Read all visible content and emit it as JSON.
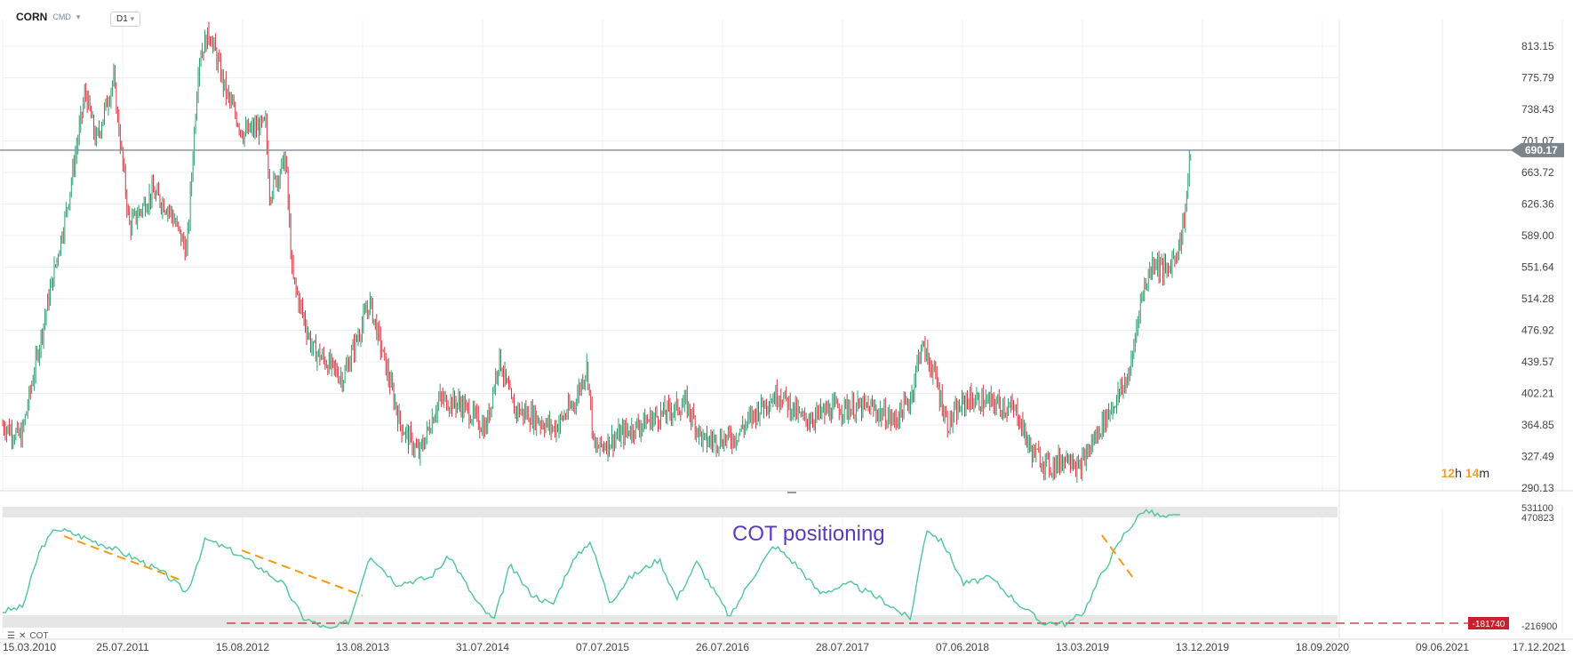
{
  "header": {
    "symbol": "CORN",
    "category": "CMD",
    "timeframe": "D1"
  },
  "timer": {
    "hours": "12",
    "h": "h",
    "minutes": "14",
    "m": "m"
  },
  "indicator": {
    "label": "COT"
  },
  "colors": {
    "up": "#2e9e6e",
    "down": "#d8343f",
    "cot_line": "#4fc79a",
    "trend": "#f39c12",
    "level": "#cc1e2c",
    "price_line": "#8a949b",
    "price_tag": "#7b858b",
    "annotation": "#5b3bbd"
  },
  "chart_data": [
    {
      "type": "candlestick",
      "symbol": "CORN",
      "timeframe": "D1",
      "x_tick_labels": [
        "15.03.2010",
        "25.07.2011",
        "15.08.2012",
        "13.08.2013",
        "31.07.2014",
        "07.07.2015",
        "26.07.2016",
        "28.07.2017",
        "07.06.2018",
        "13.03.2019",
        "13.12.2019",
        "18.09.2020",
        "09.06.2021",
        "17.12.2021"
      ],
      "y_tick_labels": [
        "813.15",
        "775.79",
        "738.43",
        "701.07",
        "663.72",
        "626.36",
        "589.00",
        "551.64",
        "514.28",
        "476.92",
        "439.57",
        "402.21",
        "364.85",
        "327.49",
        "290.13"
      ],
      "ylim": [
        290.13,
        813.15
      ],
      "current_price": "690.17",
      "approx_trend": [
        {
          "t": 0.0,
          "v": 365
        },
        {
          "t": 0.014,
          "v": 350
        },
        {
          "t": 0.03,
          "v": 480
        },
        {
          "t": 0.048,
          "v": 620
        },
        {
          "t": 0.062,
          "v": 760
        },
        {
          "t": 0.07,
          "v": 700
        },
        {
          "t": 0.083,
          "v": 775
        },
        {
          "t": 0.095,
          "v": 600
        },
        {
          "t": 0.112,
          "v": 640
        },
        {
          "t": 0.125,
          "v": 620
        },
        {
          "t": 0.138,
          "v": 570
        },
        {
          "t": 0.147,
          "v": 800
        },
        {
          "t": 0.155,
          "v": 830
        },
        {
          "t": 0.167,
          "v": 760
        },
        {
          "t": 0.18,
          "v": 710
        },
        {
          "t": 0.197,
          "v": 720
        },
        {
          "t": 0.2,
          "v": 640
        },
        {
          "t": 0.212,
          "v": 680
        },
        {
          "t": 0.217,
          "v": 540
        },
        {
          "t": 0.232,
          "v": 455
        },
        {
          "t": 0.255,
          "v": 420
        },
        {
          "t": 0.275,
          "v": 510
        },
        {
          "t": 0.283,
          "v": 460
        },
        {
          "t": 0.298,
          "v": 365
        },
        {
          "t": 0.312,
          "v": 330
        },
        {
          "t": 0.327,
          "v": 395
        },
        {
          "t": 0.343,
          "v": 390
        },
        {
          "t": 0.362,
          "v": 360
        },
        {
          "t": 0.372,
          "v": 445
        },
        {
          "t": 0.382,
          "v": 385
        },
        {
          "t": 0.397,
          "v": 375
        },
        {
          "t": 0.413,
          "v": 360
        },
        {
          "t": 0.428,
          "v": 390
        },
        {
          "t": 0.438,
          "v": 435
        },
        {
          "t": 0.443,
          "v": 335
        },
        {
          "t": 0.465,
          "v": 355
        },
        {
          "t": 0.49,
          "v": 375
        },
        {
          "t": 0.512,
          "v": 390
        },
        {
          "t": 0.525,
          "v": 345
        },
        {
          "t": 0.548,
          "v": 350
        },
        {
          "t": 0.57,
          "v": 390
        },
        {
          "t": 0.582,
          "v": 402
        },
        {
          "t": 0.6,
          "v": 370
        },
        {
          "t": 0.625,
          "v": 385
        },
        {
          "t": 0.65,
          "v": 385
        },
        {
          "t": 0.668,
          "v": 370
        },
        {
          "t": 0.68,
          "v": 395
        },
        {
          "t": 0.688,
          "v": 460
        },
        {
          "t": 0.697,
          "v": 430
        },
        {
          "t": 0.708,
          "v": 365
        },
        {
          "t": 0.722,
          "v": 395
        },
        {
          "t": 0.745,
          "v": 390
        },
        {
          "t": 0.76,
          "v": 380
        },
        {
          "t": 0.77,
          "v": 335
        },
        {
          "t": 0.785,
          "v": 315
        },
        {
          "t": 0.8,
          "v": 330
        },
        {
          "t": 0.806,
          "v": 310
        },
        {
          "t": 0.812,
          "v": 330
        },
        {
          "t": 0.825,
          "v": 370
        },
        {
          "t": 0.838,
          "v": 405
        },
        {
          "t": 0.845,
          "v": 430
        },
        {
          "t": 0.852,
          "v": 510
        },
        {
          "t": 0.862,
          "v": 560
        },
        {
          "t": 0.872,
          "v": 545
        },
        {
          "t": 0.882,
          "v": 580
        },
        {
          "t": 0.886,
          "v": 620
        },
        {
          "t": 0.89,
          "v": 690
        }
      ]
    },
    {
      "type": "line",
      "name": "COT",
      "annotation": "COT positioning",
      "y_tick_labels": [
        "531100",
        "470823",
        "-216900"
      ],
      "level_value": "-181740",
      "approx_positioning": [
        {
          "t": 0.0,
          "v": -120000
        },
        {
          "t": 0.015,
          "v": -90000
        },
        {
          "t": 0.028,
          "v": 280000
        },
        {
          "t": 0.04,
          "v": 420000
        },
        {
          "t": 0.055,
          "v": 380000
        },
        {
          "t": 0.08,
          "v": 300000
        },
        {
          "t": 0.105,
          "v": 200000
        },
        {
          "t": 0.122,
          "v": 120000
        },
        {
          "t": 0.138,
          "v": 0
        },
        {
          "t": 0.152,
          "v": 350000
        },
        {
          "t": 0.17,
          "v": 280000
        },
        {
          "t": 0.19,
          "v": 180000
        },
        {
          "t": 0.21,
          "v": 60000
        },
        {
          "t": 0.225,
          "v": -160000
        },
        {
          "t": 0.245,
          "v": -240000
        },
        {
          "t": 0.26,
          "v": -180000
        },
        {
          "t": 0.275,
          "v": 250000
        },
        {
          "t": 0.295,
          "v": 60000
        },
        {
          "t": 0.32,
          "v": 100000
        },
        {
          "t": 0.335,
          "v": 240000
        },
        {
          "t": 0.355,
          "v": -60000
        },
        {
          "t": 0.368,
          "v": -180000
        },
        {
          "t": 0.38,
          "v": 180000
        },
        {
          "t": 0.395,
          "v": 0
        },
        {
          "t": 0.412,
          "v": -80000
        },
        {
          "t": 0.425,
          "v": 180000
        },
        {
          "t": 0.44,
          "v": 340000
        },
        {
          "t": 0.455,
          "v": -60000
        },
        {
          "t": 0.47,
          "v": 100000
        },
        {
          "t": 0.492,
          "v": 220000
        },
        {
          "t": 0.505,
          "v": -40000
        },
        {
          "t": 0.52,
          "v": 200000
        },
        {
          "t": 0.545,
          "v": -160000
        },
        {
          "t": 0.56,
          "v": 80000
        },
        {
          "t": 0.578,
          "v": 310000
        },
        {
          "t": 0.595,
          "v": 180000
        },
        {
          "t": 0.612,
          "v": 0
        },
        {
          "t": 0.635,
          "v": 60000
        },
        {
          "t": 0.658,
          "v": -40000
        },
        {
          "t": 0.68,
          "v": -170000
        },
        {
          "t": 0.692,
          "v": 420000
        },
        {
          "t": 0.705,
          "v": 320000
        },
        {
          "t": 0.72,
          "v": 60000
        },
        {
          "t": 0.74,
          "v": 100000
        },
        {
          "t": 0.76,
          "v": -60000
        },
        {
          "t": 0.778,
          "v": -190000
        },
        {
          "t": 0.798,
          "v": -200000
        },
        {
          "t": 0.81,
          "v": -120000
        },
        {
          "t": 0.822,
          "v": 100000
        },
        {
          "t": 0.84,
          "v": 380000
        },
        {
          "t": 0.855,
          "v": 540000
        },
        {
          "t": 0.87,
          "v": 490000
        },
        {
          "t": 0.882,
          "v": 500000
        }
      ]
    }
  ]
}
